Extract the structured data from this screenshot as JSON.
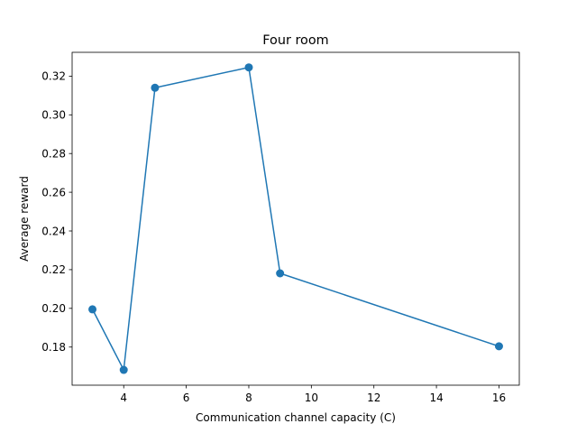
{
  "chart_data": {
    "type": "line",
    "title": "Four room",
    "xlabel": "Communication channel capacity (C)",
    "ylabel": "Average reward",
    "xlim": [
      2.35,
      16.65
    ],
    "ylim": [
      0.1603,
      0.3323
    ],
    "xticks": [
      4,
      6,
      8,
      10,
      12,
      14,
      16
    ],
    "yticks": [
      0.18,
      0.2,
      0.22,
      0.24,
      0.26,
      0.28,
      0.3,
      0.32
    ],
    "ytick_labels": [
      "0.18",
      "0.20",
      "0.22",
      "0.24",
      "0.26",
      "0.28",
      "0.30",
      "0.32"
    ],
    "grid": false,
    "series": [
      {
        "color": "#1f77b4",
        "marker": "circle",
        "x": [
          3,
          4,
          5,
          8,
          9,
          16
        ],
        "y": [
          0.1995,
          0.1682,
          0.314,
          0.3245,
          0.2181,
          0.1804
        ]
      }
    ]
  }
}
